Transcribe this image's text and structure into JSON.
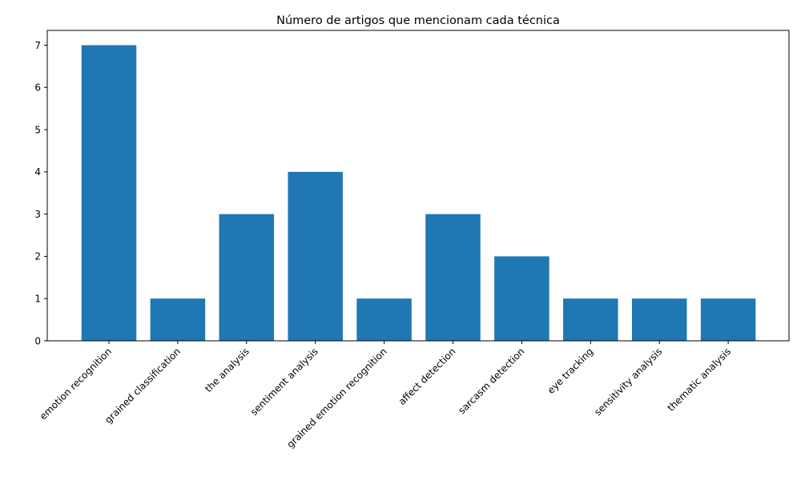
{
  "chart_data": {
    "type": "bar",
    "title": "Número de artigos que mencionam cada técnica",
    "xlabel": "",
    "ylabel": "",
    "categories": [
      "emotion recognition",
      "grained classification",
      "the analysis",
      "sentiment analysis",
      "grained emotion recognition",
      "affect detection",
      "sarcasm detection",
      "eye tracking",
      "sensitivity analysis",
      "thematic analysis"
    ],
    "values": [
      7,
      1,
      3,
      4,
      1,
      3,
      2,
      1,
      1,
      1
    ],
    "ylim": [
      0,
      7.35
    ],
    "yticks": [
      0,
      1,
      2,
      3,
      4,
      5,
      6,
      7
    ],
    "bar_color": "#1f77b4",
    "grid": false,
    "legend": "none"
  }
}
